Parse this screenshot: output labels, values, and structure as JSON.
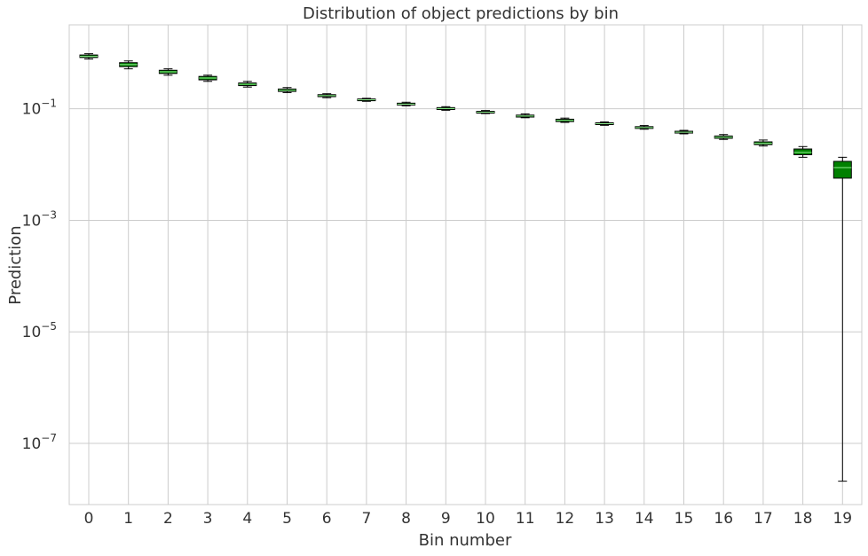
{
  "chart_data": {
    "type": "box",
    "title": "Distribution of object predictions by bin",
    "xlabel": "Bin number",
    "ylabel": "Prediction",
    "yscale": "log",
    "ylim": [
      8e-09,
      3.2
    ],
    "yticks": [
      {
        "value": 0.1,
        "base": "10",
        "exp": "−1"
      },
      {
        "value": 0.001,
        "base": "10",
        "exp": "−3"
      },
      {
        "value": 1e-05,
        "base": "10",
        "exp": "−5"
      },
      {
        "value": 1e-07,
        "base": "10",
        "exp": "−7"
      }
    ],
    "grid": true,
    "colors": {
      "box_fill": "#008000",
      "box_edge": "#000000",
      "median": "#90ee90",
      "grid": "#cccccc",
      "text": "#333333"
    },
    "categories": [
      "0",
      "1",
      "2",
      "3",
      "4",
      "5",
      "6",
      "7",
      "8",
      "9",
      "10",
      "11",
      "12",
      "13",
      "14",
      "15",
      "16",
      "17",
      "18",
      "19"
    ],
    "boxes": [
      {
        "whislo": 0.78,
        "q1": 0.83,
        "med": 0.87,
        "q3": 0.92,
        "whishi": 0.97
      },
      {
        "whislo": 0.52,
        "q1": 0.57,
        "med": 0.62,
        "q3": 0.67,
        "whishi": 0.72
      },
      {
        "whislo": 0.4,
        "q1": 0.43,
        "med": 0.46,
        "q3": 0.49,
        "whishi": 0.52
      },
      {
        "whislo": 0.31,
        "q1": 0.33,
        "med": 0.355,
        "q3": 0.38,
        "whishi": 0.4
      },
      {
        "whislo": 0.245,
        "q1": 0.26,
        "med": 0.275,
        "q3": 0.29,
        "whishi": 0.31
      },
      {
        "whislo": 0.195,
        "q1": 0.205,
        "med": 0.215,
        "q3": 0.226,
        "whishi": 0.24
      },
      {
        "whislo": 0.158,
        "q1": 0.165,
        "med": 0.172,
        "q3": 0.179,
        "whishi": 0.186
      },
      {
        "whislo": 0.136,
        "q1": 0.14,
        "med": 0.145,
        "q3": 0.15,
        "whishi": 0.154
      },
      {
        "whislo": 0.113,
        "q1": 0.117,
        "med": 0.121,
        "q3": 0.126,
        "whishi": 0.131
      },
      {
        "whislo": 0.094,
        "q1": 0.097,
        "med": 0.101,
        "q3": 0.105,
        "whishi": 0.109
      },
      {
        "whislo": 0.082,
        "q1": 0.084,
        "med": 0.087,
        "q3": 0.09,
        "whishi": 0.093
      },
      {
        "whislo": 0.069,
        "q1": 0.071,
        "med": 0.074,
        "q3": 0.077,
        "whishi": 0.081
      },
      {
        "whislo": 0.057,
        "q1": 0.059,
        "med": 0.062,
        "q3": 0.065,
        "whishi": 0.068
      },
      {
        "whislo": 0.0505,
        "q1": 0.052,
        "med": 0.054,
        "q3": 0.056,
        "whishi": 0.058
      },
      {
        "whislo": 0.043,
        "q1": 0.0445,
        "med": 0.046,
        "q3": 0.0478,
        "whishi": 0.05
      },
      {
        "whislo": 0.0355,
        "q1": 0.0368,
        "med": 0.038,
        "q3": 0.0395,
        "whishi": 0.041
      },
      {
        "whislo": 0.0282,
        "q1": 0.0296,
        "med": 0.031,
        "q3": 0.0325,
        "whishi": 0.0345
      },
      {
        "whislo": 0.0215,
        "q1": 0.0228,
        "med": 0.024,
        "q3": 0.0255,
        "whishi": 0.0275
      },
      {
        "whislo": 0.0135,
        "q1": 0.015,
        "med": 0.0165,
        "q3": 0.019,
        "whishi": 0.021
      },
      {
        "whislo": 2.1e-08,
        "q1": 0.0057,
        "med": 0.0088,
        "q3": 0.0114,
        "whishi": 0.0135
      }
    ]
  }
}
